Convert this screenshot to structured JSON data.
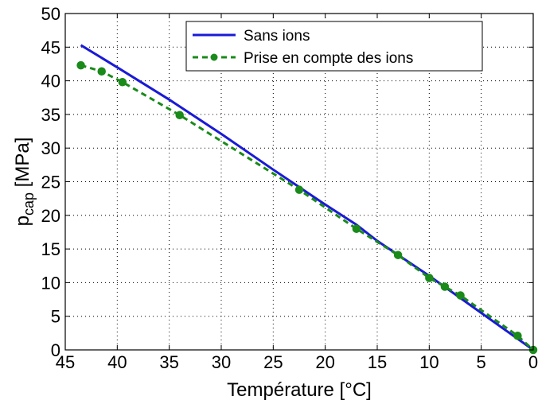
{
  "chart_data": {
    "type": "line",
    "xlabel": "Température [°C]",
    "ylabel_main": "p",
    "ylabel_sub": "cap",
    "ylabel_unit": " [MPa]",
    "xlim": [
      45,
      0
    ],
    "ylim": [
      0,
      50
    ],
    "x_reversed": true,
    "grid": true,
    "legend_position": "top-center",
    "x_ticks": [
      45,
      40,
      35,
      30,
      25,
      20,
      15,
      10,
      5,
      0
    ],
    "y_ticks": [
      0,
      5,
      10,
      15,
      20,
      25,
      30,
      35,
      40,
      45,
      50
    ],
    "series": [
      {
        "name": "Sans ions",
        "color": "#1a1ad6",
        "style": "solid",
        "markers": false,
        "x": [
          43.5,
          40,
          35,
          30,
          25,
          20,
          17,
          15,
          10,
          5,
          0
        ],
        "y": [
          45.3,
          42.0,
          37.2,
          32.1,
          26.8,
          21.6,
          18.6,
          16.2,
          11.0,
          5.5,
          0
        ]
      },
      {
        "name": "Prise en compte des ions",
        "color": "#1a8a1a",
        "style": "dashed",
        "markers": true,
        "x": [
          43.5,
          41.5,
          39.5,
          34,
          22.5,
          17,
          13,
          10,
          8.5,
          7,
          1.5,
          0
        ],
        "y": [
          42.3,
          41.4,
          39.8,
          34.9,
          23.8,
          18.0,
          14.1,
          10.7,
          9.4,
          8.1,
          2.1,
          0
        ]
      }
    ]
  }
}
